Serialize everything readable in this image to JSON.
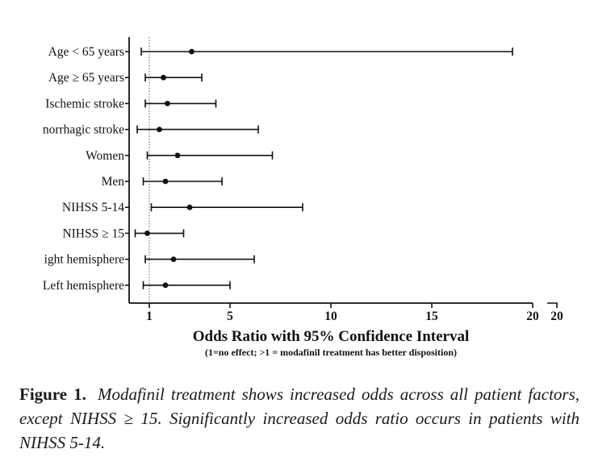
{
  "chart_data": {
    "type": "forest",
    "rows": [
      {
        "label": "Age < 65 years",
        "or": 3.1,
        "ci_low": 0.6,
        "ci_high": 19.0
      },
      {
        "label": "Age ≥ 65 years",
        "or": 1.7,
        "ci_low": 0.8,
        "ci_high": 3.6
      },
      {
        "label": "Ischemic stroke",
        "or": 1.9,
        "ci_low": 0.8,
        "ci_high": 4.3
      },
      {
        "label": "norrhagic stroke",
        "or": 1.5,
        "ci_low": 0.4,
        "ci_high": 6.4
      },
      {
        "label": "Women",
        "or": 2.4,
        "ci_low": 0.9,
        "ci_high": 7.1
      },
      {
        "label": "Men",
        "or": 1.8,
        "ci_low": 0.7,
        "ci_high": 4.6
      },
      {
        "label": "NIHSS 5-14",
        "or": 3.0,
        "ci_low": 1.1,
        "ci_high": 8.6
      },
      {
        "label": "NIHSS ≥ 15",
        "or": 0.9,
        "ci_low": 0.3,
        "ci_high": 2.7
      },
      {
        "label": "ight hemisphere",
        "or": 2.2,
        "ci_low": 0.8,
        "ci_high": 6.2
      },
      {
        "label": "Left hemisphere",
        "or": 1.8,
        "ci_low": 0.7,
        "ci_high": 5.0
      }
    ],
    "xlim": [
      0,
      20
    ],
    "xticks": [
      1,
      5,
      10,
      15,
      20
    ],
    "xtick_labels": [
      "1",
      "5",
      "10",
      "15",
      "20"
    ],
    "axis_break_label": "20",
    "reference_line": 1,
    "xlabel": "Odds Ratio with 95% Confidence Interval",
    "xlabel_sub": "(1=no effect; >1 = modafinil treatment has better disposition)"
  },
  "caption": {
    "label": "Figure 1.",
    "text": "Modafinil treatment shows increased odds across all patient factors, except NIHSS ≥ 15. Significantly increased odds ratio occurs in patients with NIHSS 5-14."
  }
}
